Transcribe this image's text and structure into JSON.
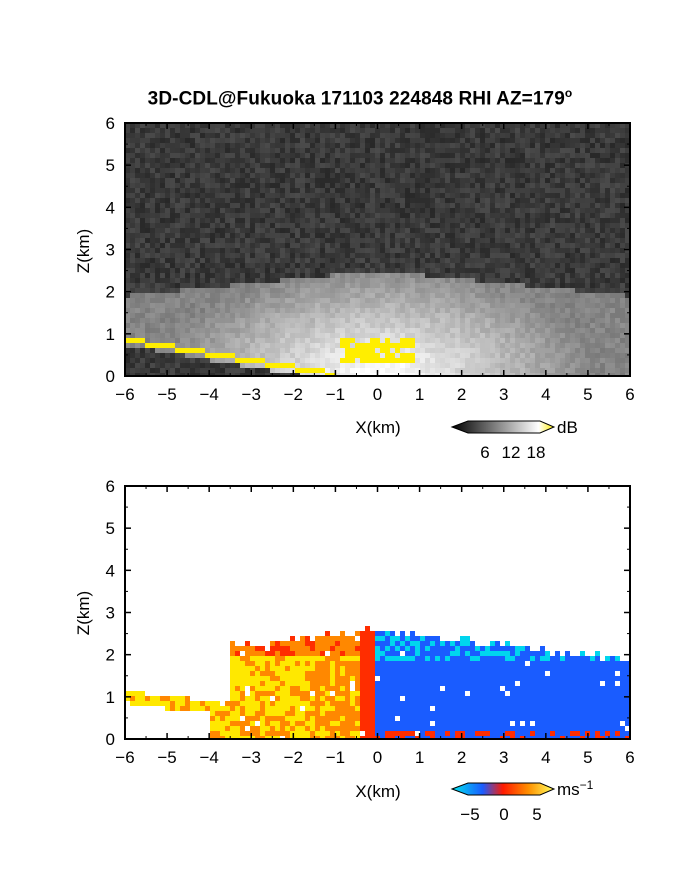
{
  "figure": {
    "title": "3D-CDL@Fukuoka 171103 224848 RHI AZ=179",
    "title_superscript": "o"
  },
  "colors": {
    "reflectivity_highlight": "#ffee00",
    "velocity_cyan": "#00d5ee",
    "velocity_blue": "#1a5cff",
    "velocity_red": "#ff2d00",
    "velocity_orange": "#ff8800",
    "velocity_yellow": "#ffe800"
  },
  "chart_data": [
    {
      "type": "heatmap",
      "panel": "reflectivity",
      "xlabel": "X(km)",
      "ylabel": "Z(km)",
      "xlim": [
        -6,
        6
      ],
      "ylim": [
        0,
        6
      ],
      "xticks": [
        "-6",
        "-5",
        "-4",
        "-3",
        "-2",
        "-1",
        "0",
        "1",
        "2",
        "3",
        "4",
        "5",
        "6"
      ],
      "yticks": [
        "0",
        "1",
        "2",
        "3",
        "4",
        "5",
        "6"
      ],
      "colorbar": {
        "unit": "dB",
        "ticks": [
          "6",
          "12",
          "18"
        ],
        "tick_values": [
          6,
          12,
          18
        ],
        "range": [
          0,
          22
        ]
      },
      "features": {
        "echo_top_km": 2.5,
        "strong_echo_core_x_km": [
          -1.0,
          1.0
        ],
        "strong_echo_core_z_km": [
          0.3,
          0.9
        ]
      }
    },
    {
      "type": "heatmap",
      "panel": "doppler_velocity",
      "xlabel": "X(km)",
      "ylabel": "Z(km)",
      "xlim": [
        -6,
        6
      ],
      "ylim": [
        0,
        6
      ],
      "xticks": [
        "-6",
        "-5",
        "-4",
        "-3",
        "-2",
        "-1",
        "0",
        "1",
        "2",
        "3",
        "4",
        "5",
        "6"
      ],
      "yticks": [
        "0",
        "1",
        "2",
        "3",
        "4",
        "5",
        "6"
      ],
      "colorbar": {
        "unit": "ms",
        "unit_exponent": "−1",
        "ticks": [
          "−5",
          "0",
          "5"
        ],
        "tick_values": [
          -5,
          0,
          5
        ],
        "range": [
          -7,
          7
        ]
      },
      "features": {
        "negative_region_x_km": [
          0,
          6
        ],
        "positive_region_x_km": [
          -6,
          0
        ],
        "echo_top_km": 2.6
      }
    }
  ]
}
